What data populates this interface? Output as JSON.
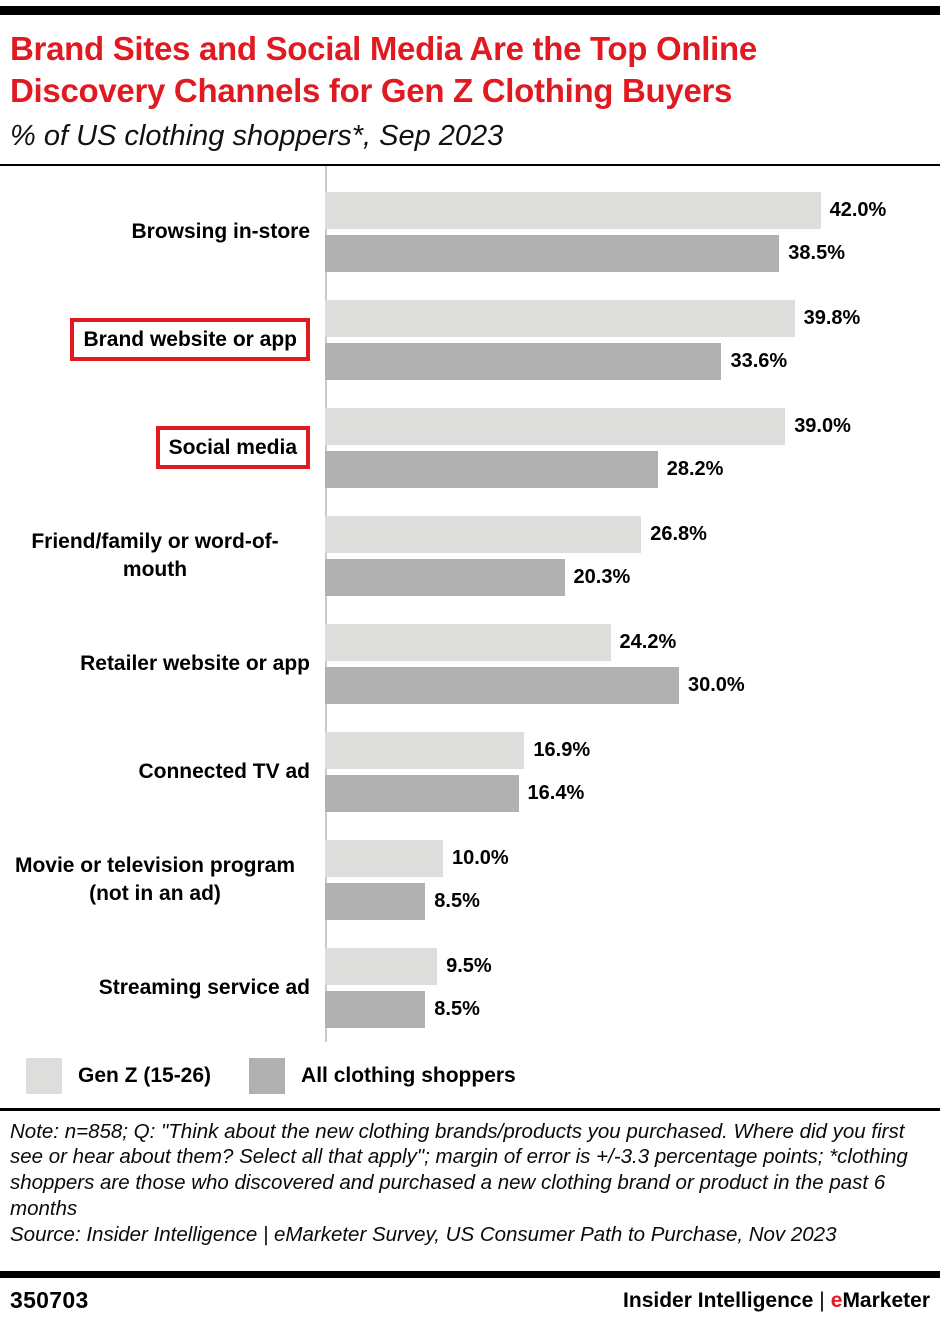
{
  "header": {
    "title": "Brand Sites and Social Media Are the Top Online Discovery Channels for Gen Z Clothing Buyers",
    "subtitle": "% of US clothing shoppers*, Sep 2023"
  },
  "chart_data": {
    "type": "bar",
    "orientation": "horizontal",
    "title": "Brand Sites and Social Media Are the Top Online Discovery Channels for Gen Z Clothing Buyers",
    "subtitle": "% of US clothing shoppers*, Sep 2023",
    "value_unit": "%",
    "xlim": [
      0,
      47
    ],
    "grid": false,
    "legend_position": "bottom",
    "categories": [
      "Browsing in-store",
      "Brand website or app",
      "Social media",
      "Friend/family or word-of-mouth",
      "Retailer website or app",
      "Connected TV ad",
      "Movie or television program (not in an ad)",
      "Streaming service ad"
    ],
    "highlighted_categories": [
      "Brand website or app",
      "Social media"
    ],
    "series": [
      {
        "name": "Gen Z (15-26)",
        "color": "#dddddb",
        "values": [
          42.0,
          39.8,
          39.0,
          26.8,
          24.2,
          16.9,
          10.0,
          9.5
        ]
      },
      {
        "name": "All clothing shoppers",
        "color": "#b1b1b1",
        "values": [
          38.5,
          33.6,
          28.2,
          20.3,
          30.0,
          16.4,
          8.5,
          8.5
        ]
      }
    ]
  },
  "footnote": {
    "note": "Note: n=858; Q: \"Think about the new clothing brands/products you purchased. Where did you first see or hear about them? Select all that apply\"; margin of error is +/-3.3 percentage points; *clothing shoppers are those who discovered and purchased a new clothing brand or product in the past 6 months",
    "source": "Source: Insider Intelligence | eMarketer Survey, US Consumer Path to Purchase, Nov 2023"
  },
  "footer": {
    "chart_id": "350703",
    "brand_left": "Insider Intelligence",
    "brand_divider": "|",
    "brand_e": "e",
    "brand_rest": "Marketer"
  },
  "colors": {
    "accent_red": "#e01a20",
    "bar_light": "#dddddb",
    "bar_dark": "#b1b1b1",
    "axis_line": "#c9c9c9",
    "text": "#000000"
  }
}
